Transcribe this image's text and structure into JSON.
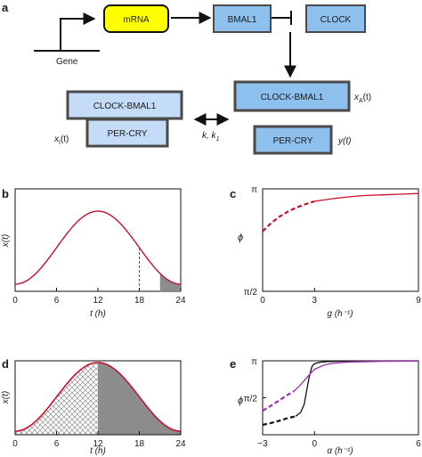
{
  "panel_a": {
    "letter": "a",
    "gene_label": "Gene",
    "mrna_label": "mRNA",
    "bmal1_label": "BMAL1",
    "clock_label": "CLOCK",
    "clock_bmal1_label": "CLOCK-BMAL1",
    "per_cry_label": "PER-CRY",
    "left_clock_bmal1_label": "CLOCK-BMAL1",
    "left_per_cry_label": "PER-CRY",
    "xa_label": "x",
    "xa_sub": "A",
    "xa_arg": "(t)",
    "xi_label": "x",
    "xi_sub": "I",
    "xi_arg": "(t)",
    "y_label": "y(t)",
    "rate_label": "k, k",
    "rate_sub": "1",
    "colors": {
      "mrna_fill": "#ffff00",
      "box_fill": "#8ec0ee",
      "box_light": "#c4dcf6",
      "box_stroke": "#4a4a4a"
    }
  },
  "chart_data": [
    {
      "panel": "b",
      "type": "line",
      "xlabel": "t (h)",
      "ylabel": "x(t)",
      "xticks": [
        "0",
        "6",
        "12",
        "18",
        "24"
      ],
      "xlim": [
        0,
        24
      ],
      "peak_x": 12,
      "dashed_marker_x": 18,
      "shaded_from_x": 21,
      "series_color": "#c8102e"
    },
    {
      "panel": "c",
      "type": "line",
      "xlabel": "g (h⁻¹)",
      "ylabel": "ϕ",
      "xticks": [
        "0",
        "3",
        "9"
      ],
      "yticks": [
        "π",
        "π/2"
      ],
      "xlim": [
        0,
        9
      ],
      "ylim": [
        1.5708,
        3.1416
      ],
      "series": [
        {
          "x": [
            0,
            0.5,
            1,
            1.5,
            2,
            2.5,
            3
          ],
          "y": [
            2.49,
            2.62,
            2.72,
            2.8,
            2.86,
            2.91,
            2.95
          ],
          "style": "dashed",
          "color": "#c8102e"
        },
        {
          "x": [
            3,
            4,
            5,
            6,
            7,
            8,
            9
          ],
          "y": [
            2.95,
            2.99,
            3.02,
            3.04,
            3.05,
            3.06,
            3.07
          ],
          "style": "solid",
          "color": "#c8102e"
        }
      ]
    },
    {
      "panel": "d",
      "type": "line",
      "xlabel": "t (h)",
      "ylabel": "x(t)",
      "xticks": [
        "0",
        "6",
        "12",
        "18",
        "24"
      ],
      "xlim": [
        0,
        24
      ],
      "peak_x": 12,
      "hatched_to_x": 12,
      "gray_from_x": 12,
      "series_color": "#c8102e"
    },
    {
      "panel": "e",
      "type": "line",
      "xlabel": "α (h⁻¹)",
      "ylabel": "ϕ",
      "xticks": [
        "−3",
        "0",
        "6"
      ],
      "yticks": [
        "π",
        "π/2"
      ],
      "xlim": [
        -3,
        6
      ],
      "ylim": [
        0,
        3.1416
      ],
      "series": [
        {
          "x": [
            -3,
            -2.5,
            -2,
            -1.5,
            -1.1
          ],
          "y": [
            0.42,
            0.5,
            0.6,
            0.72,
            0.78
          ],
          "style": "dashed",
          "color": "#111111"
        },
        {
          "x": [
            -1.1,
            -0.8,
            -0.6,
            -0.45,
            -0.3,
            -0.15,
            0,
            0.3,
            0.8,
            2,
            6
          ],
          "y": [
            0.78,
            0.95,
            1.3,
            1.9,
            2.5,
            2.9,
            3.02,
            3.08,
            3.11,
            3.13,
            3.14
          ],
          "style": "solid",
          "color": "#111111"
        },
        {
          "x": [
            -3,
            -2.5,
            -2,
            -1.5,
            -1.2
          ],
          "y": [
            1.02,
            1.24,
            1.48,
            1.72,
            1.85
          ],
          "style": "dashed",
          "color": "#9b30b0"
        },
        {
          "x": [
            -1.2,
            -0.9,
            -0.6,
            -0.3,
            0,
            0.5,
            1,
            2,
            4,
            6
          ],
          "y": [
            1.85,
            2.05,
            2.3,
            2.55,
            2.78,
            2.95,
            3.03,
            3.09,
            3.12,
            3.13
          ],
          "style": "solid",
          "color": "#9b30b0"
        }
      ]
    }
  ],
  "letters": {
    "b": "b",
    "c": "c",
    "d": "d",
    "e": "e"
  }
}
